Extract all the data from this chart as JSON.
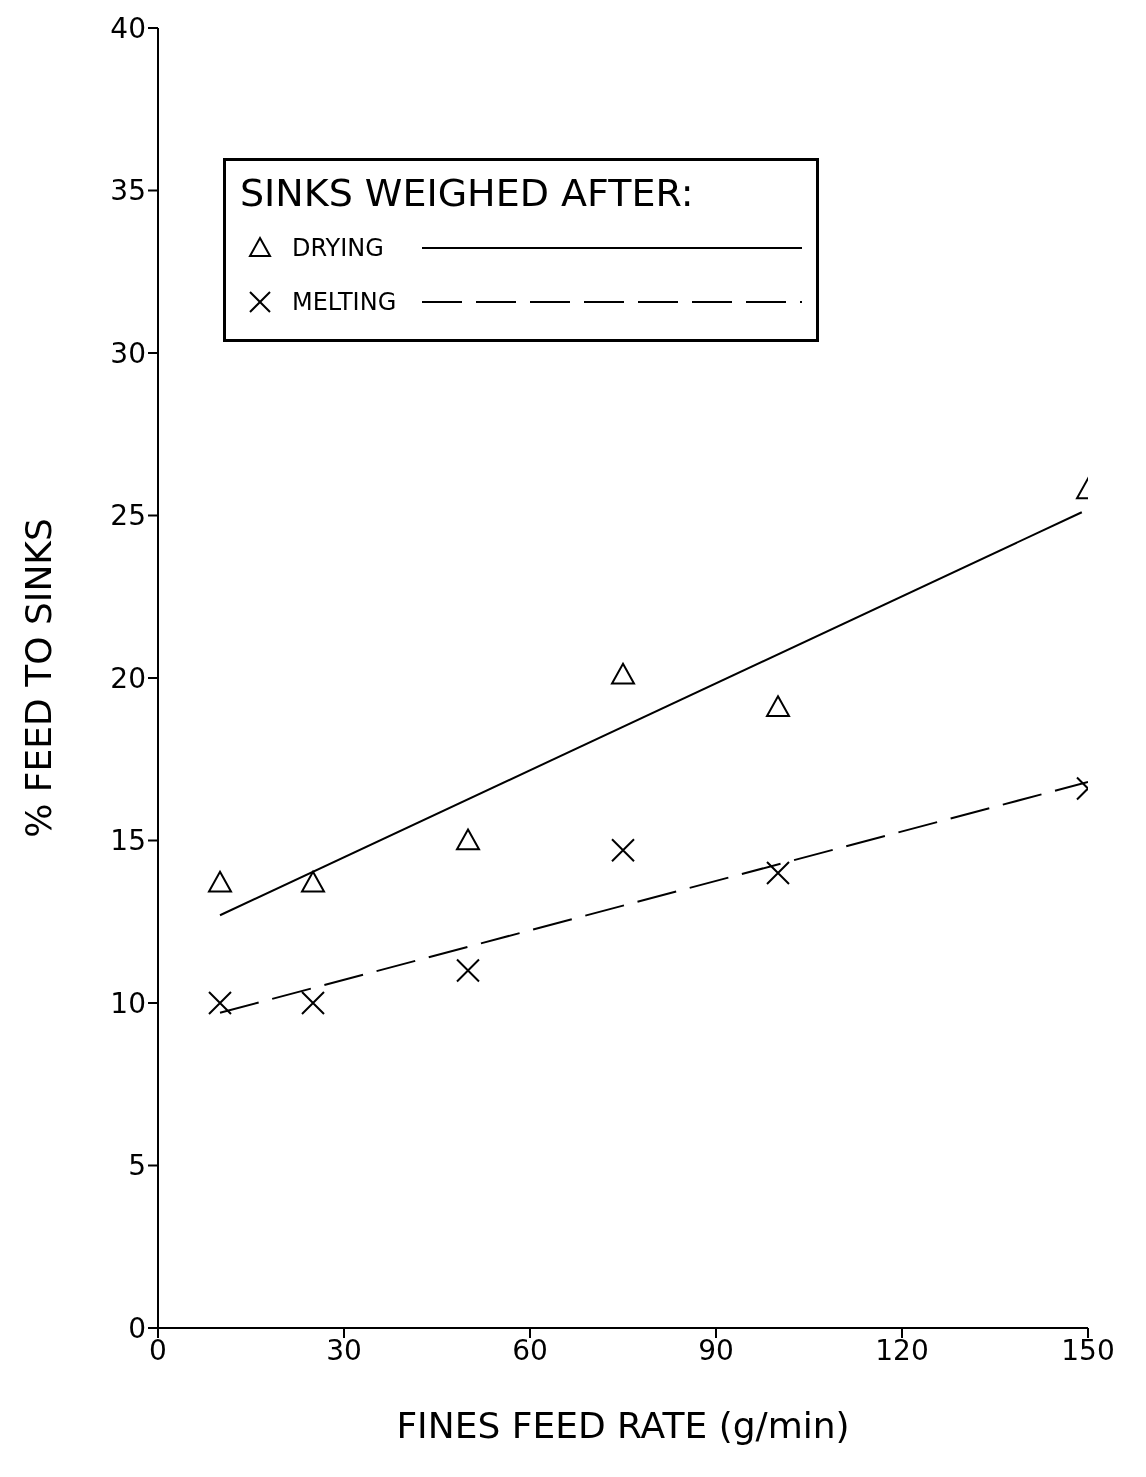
{
  "chart_data": {
    "type": "scatter",
    "xlabel": "FINES FEED RATE (g/min)",
    "ylabel": "% FEED TO SINKS",
    "legend_title": "SINKS WEIGHED AFTER:",
    "legend": "top left",
    "xlim": [
      0,
      150
    ],
    "xticks": [
      0,
      30,
      60,
      90,
      120,
      150
    ],
    "ylim": [
      0,
      40
    ],
    "yticks": [
      0,
      5,
      10,
      15,
      20,
      25,
      30,
      35,
      40
    ],
    "series": [
      {
        "name": "DRYING",
        "marker": "triangle",
        "color": "#000000",
        "x": [
          10,
          25,
          50,
          75,
          100,
          150
        ],
        "values": [
          13.7,
          13.7,
          15,
          20.1,
          19.1,
          25.8
        ]
      },
      {
        "name": "MELTING",
        "marker": "cross",
        "color": "#000000",
        "x": [
          10,
          25,
          50,
          75,
          100,
          150
        ],
        "values": [
          10,
          10,
          11,
          14.7,
          14,
          16.6
        ]
      },
      {
        "type": "line",
        "marker": "none",
        "line_style": "solid",
        "color": "#000000",
        "x": [
          10,
          149
        ],
        "values": [
          12.7,
          25.1
        ]
      },
      {
        "type": "line",
        "marker": "none",
        "line_style": "dashed",
        "color": "#000000",
        "x": [
          10,
          150
        ],
        "values": [
          9.7,
          16.8
        ]
      }
    ]
  }
}
